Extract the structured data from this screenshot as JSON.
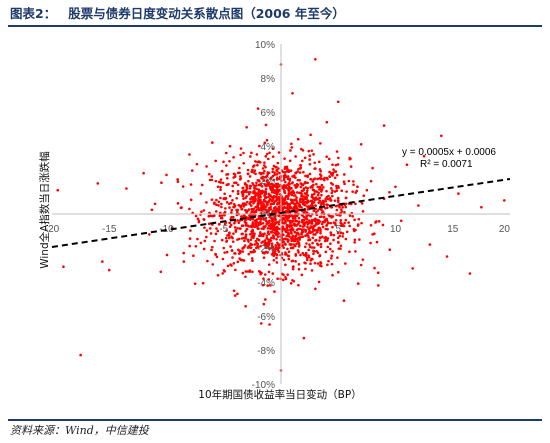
{
  "header": {
    "figure_label": "图表2：",
    "figure_title": "股票与债券日度变动关系散点图（2006 年至今）"
  },
  "footer": {
    "source": "资料来源：Wind，中信建投"
  },
  "colors": {
    "title": "#1f3a6b",
    "points": "#ff0000",
    "trend": "#000000",
    "axis": "#bfbfbf"
  },
  "chart_data": {
    "type": "scatter",
    "xlabel": "10年期国债收益率当日变动（BP）",
    "ylabel": "Wind全A指数当日涨跌幅",
    "xlim": [
      -20,
      20
    ],
    "ylim": [
      -10,
      10
    ],
    "x_ticks": [
      "-20",
      "-15",
      "-10",
      "-5",
      "0",
      "5",
      "10",
      "15",
      "20"
    ],
    "y_ticks": [
      "-10%",
      "-8%",
      "-6%",
      "-4%",
      "-2%",
      "0%",
      "2%",
      "4%",
      "6%",
      "8%",
      "10%"
    ],
    "y_tick_values": [
      -10,
      -8,
      -6,
      -4,
      -2,
      0,
      2,
      4,
      6,
      8,
      10
    ],
    "x_tick_values": [
      -20,
      -15,
      -10,
      -5,
      0,
      5,
      10,
      15,
      20
    ],
    "point_color": "#ff0000",
    "trendline": {
      "type": "linear",
      "slope": 0.0005,
      "intercept": 0.0006,
      "equation": "y = 0.0005x + 0.0006",
      "r_squared_label": "R² = 0.0071",
      "style": "dashed"
    },
    "points": [
      [
        -19.5,
        1.4
      ],
      [
        -19,
        -3.1
      ],
      [
        -16,
        1.8
      ],
      [
        -15.6,
        -2.8
      ],
      [
        -17.5,
        -8.3
      ],
      [
        -15,
        -3.3
      ],
      [
        -13.5,
        1.5
      ],
      [
        -12,
        2.4
      ],
      [
        -11.5,
        -1.2
      ],
      [
        -11,
        0.6
      ],
      [
        -10.5,
        -3.4
      ],
      [
        -10,
        2.3
      ],
      [
        -9.5,
        -0.8
      ],
      [
        -9,
        1.9
      ],
      [
        -8.5,
        -2.3
      ],
      [
        -8,
        0.3
      ],
      [
        -8,
        3.5
      ],
      [
        -7.5,
        -4.1
      ],
      [
        -7,
        1.2
      ],
      [
        -7,
        -1.7
      ],
      [
        -6.5,
        2.8
      ],
      [
        -6,
        -0.6
      ],
      [
        -6,
        4.2
      ],
      [
        -5.5,
        -3.6
      ],
      [
        -5.5,
        1.6
      ],
      [
        -5,
        -2.0
      ],
      [
        -5,
        0.9
      ],
      [
        -4.5,
        3.1
      ],
      [
        -4.5,
        -1.1
      ],
      [
        -4,
        2.2
      ],
      [
        -4,
        -4.8
      ],
      [
        -3.5,
        0.4
      ],
      [
        -3.5,
        -2.7
      ],
      [
        -3,
        1.7
      ],
      [
        -3,
        -0.9
      ],
      [
        -3,
        5.1
      ],
      [
        -2.5,
        -3.4
      ],
      [
        -2.5,
        2.6
      ],
      [
        -2,
        -1.5
      ],
      [
        -2,
        0.8
      ],
      [
        -2,
        6.2
      ],
      [
        -1.5,
        -5.3
      ],
      [
        -1.5,
        1.3
      ],
      [
        -1,
        -0.4
      ],
      [
        -1,
        3.6
      ],
      [
        -1,
        -6.5
      ],
      [
        -0.5,
        0.2
      ],
      [
        -0.5,
        -2.2
      ],
      [
        0,
        8.8
      ],
      [
        0,
        -9.2
      ],
      [
        0,
        1.1
      ],
      [
        0.5,
        -1.3
      ],
      [
        0.5,
        2.5
      ],
      [
        1,
        -3.9
      ],
      [
        1,
        0.7
      ],
      [
        1,
        7.1
      ],
      [
        1.5,
        -0.6
      ],
      [
        1.5,
        4.4
      ],
      [
        2,
        -2.4
      ],
      [
        2,
        1.5
      ],
      [
        2,
        -7.3
      ],
      [
        2.5,
        3.2
      ],
      [
        2.5,
        -1.0
      ],
      [
        3,
        0.5
      ],
      [
        3,
        -4.4
      ],
      [
        3,
        9.1
      ],
      [
        3.5,
        2.1
      ],
      [
        3.5,
        -2.9
      ],
      [
        4,
        1.0
      ],
      [
        4,
        -0.3
      ],
      [
        4,
        5.4
      ],
      [
        4.5,
        -3.6
      ],
      [
        4.5,
        2.9
      ],
      [
        5,
        -1.4
      ],
      [
        5,
        0.8
      ],
      [
        5,
        6.6
      ],
      [
        5.5,
        -5.1
      ],
      [
        5.5,
        1.9
      ],
      [
        6,
        -0.7
      ],
      [
        6,
        3.3
      ],
      [
        6.5,
        -2.2
      ],
      [
        6.5,
        0.6
      ],
      [
        7,
        4.1
      ],
      [
        7,
        -3.0
      ],
      [
        7.5,
        1.4
      ],
      [
        8,
        -1.2
      ],
      [
        8,
        2.7
      ],
      [
        8.5,
        -4.2
      ],
      [
        9,
        0.9
      ],
      [
        9,
        5.2
      ],
      [
        9.5,
        -2.1
      ],
      [
        10,
        1.6
      ],
      [
        10.5,
        -0.4
      ],
      [
        11,
        2.9
      ],
      [
        11.5,
        -3.2
      ],
      [
        12,
        0.5
      ],
      [
        12.5,
        3.4
      ],
      [
        13,
        -1.8
      ],
      [
        14,
        4.6
      ],
      [
        14.5,
        -2.5
      ],
      [
        15.5,
        1.2
      ],
      [
        16.5,
        -3.5
      ],
      [
        17.5,
        0.4
      ],
      [
        19.5,
        0.8
      ]
    ]
  }
}
